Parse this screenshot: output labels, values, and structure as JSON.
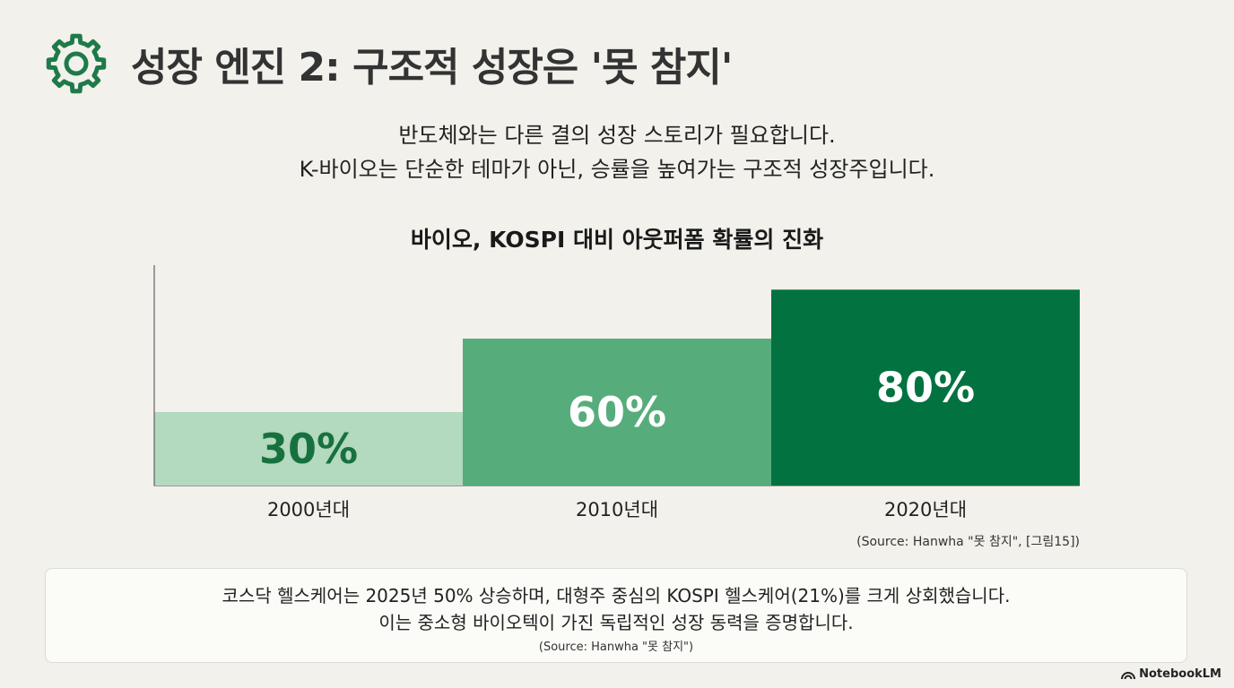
{
  "header": {
    "title": "성장 엔진 2: 구조적 성장은 '못 참지'",
    "icon": "gear-icon"
  },
  "intro": {
    "line1": "반도체와는 다른 결의 성장 스토리가 필요합니다.",
    "line2": "K-바이오는 단순한 테마가 아닌, 승률을 높여가는 구조적 성장주입니다."
  },
  "chart_data": {
    "type": "bar",
    "title": "바이오, KOSPI 대비 아웃퍼폼 확률의 진화",
    "categories": [
      "2000년대",
      "2010년대",
      "2020년대"
    ],
    "values": [
      30,
      60,
      80
    ],
    "value_labels": [
      "30%",
      "60%",
      "80%"
    ],
    "ylim": [
      0,
      90
    ],
    "grid": false,
    "colors": [
      "#b3d9bf",
      "#56ad7b",
      "#017240"
    ],
    "label_colors": [
      "#17713f",
      "#ffffff",
      "#ffffff"
    ],
    "source": "(Source: Hanwha \"못 참지\", [그림15])"
  },
  "callout": {
    "line1": "코스닥 헬스케어는 2025년 50% 상승하며, 대형주 중심의 KOSPI 헬스케어(21%)를 크게 상회했습니다.",
    "line2": "이는 중소형 바이오텍이 가진 독립적인 성장 동력을 증명합니다.",
    "source": "(Source: Hanwha \"못 참지\")"
  },
  "brand": {
    "label": "NotebookLM",
    "icon": "notebooklm-logo-icon"
  }
}
